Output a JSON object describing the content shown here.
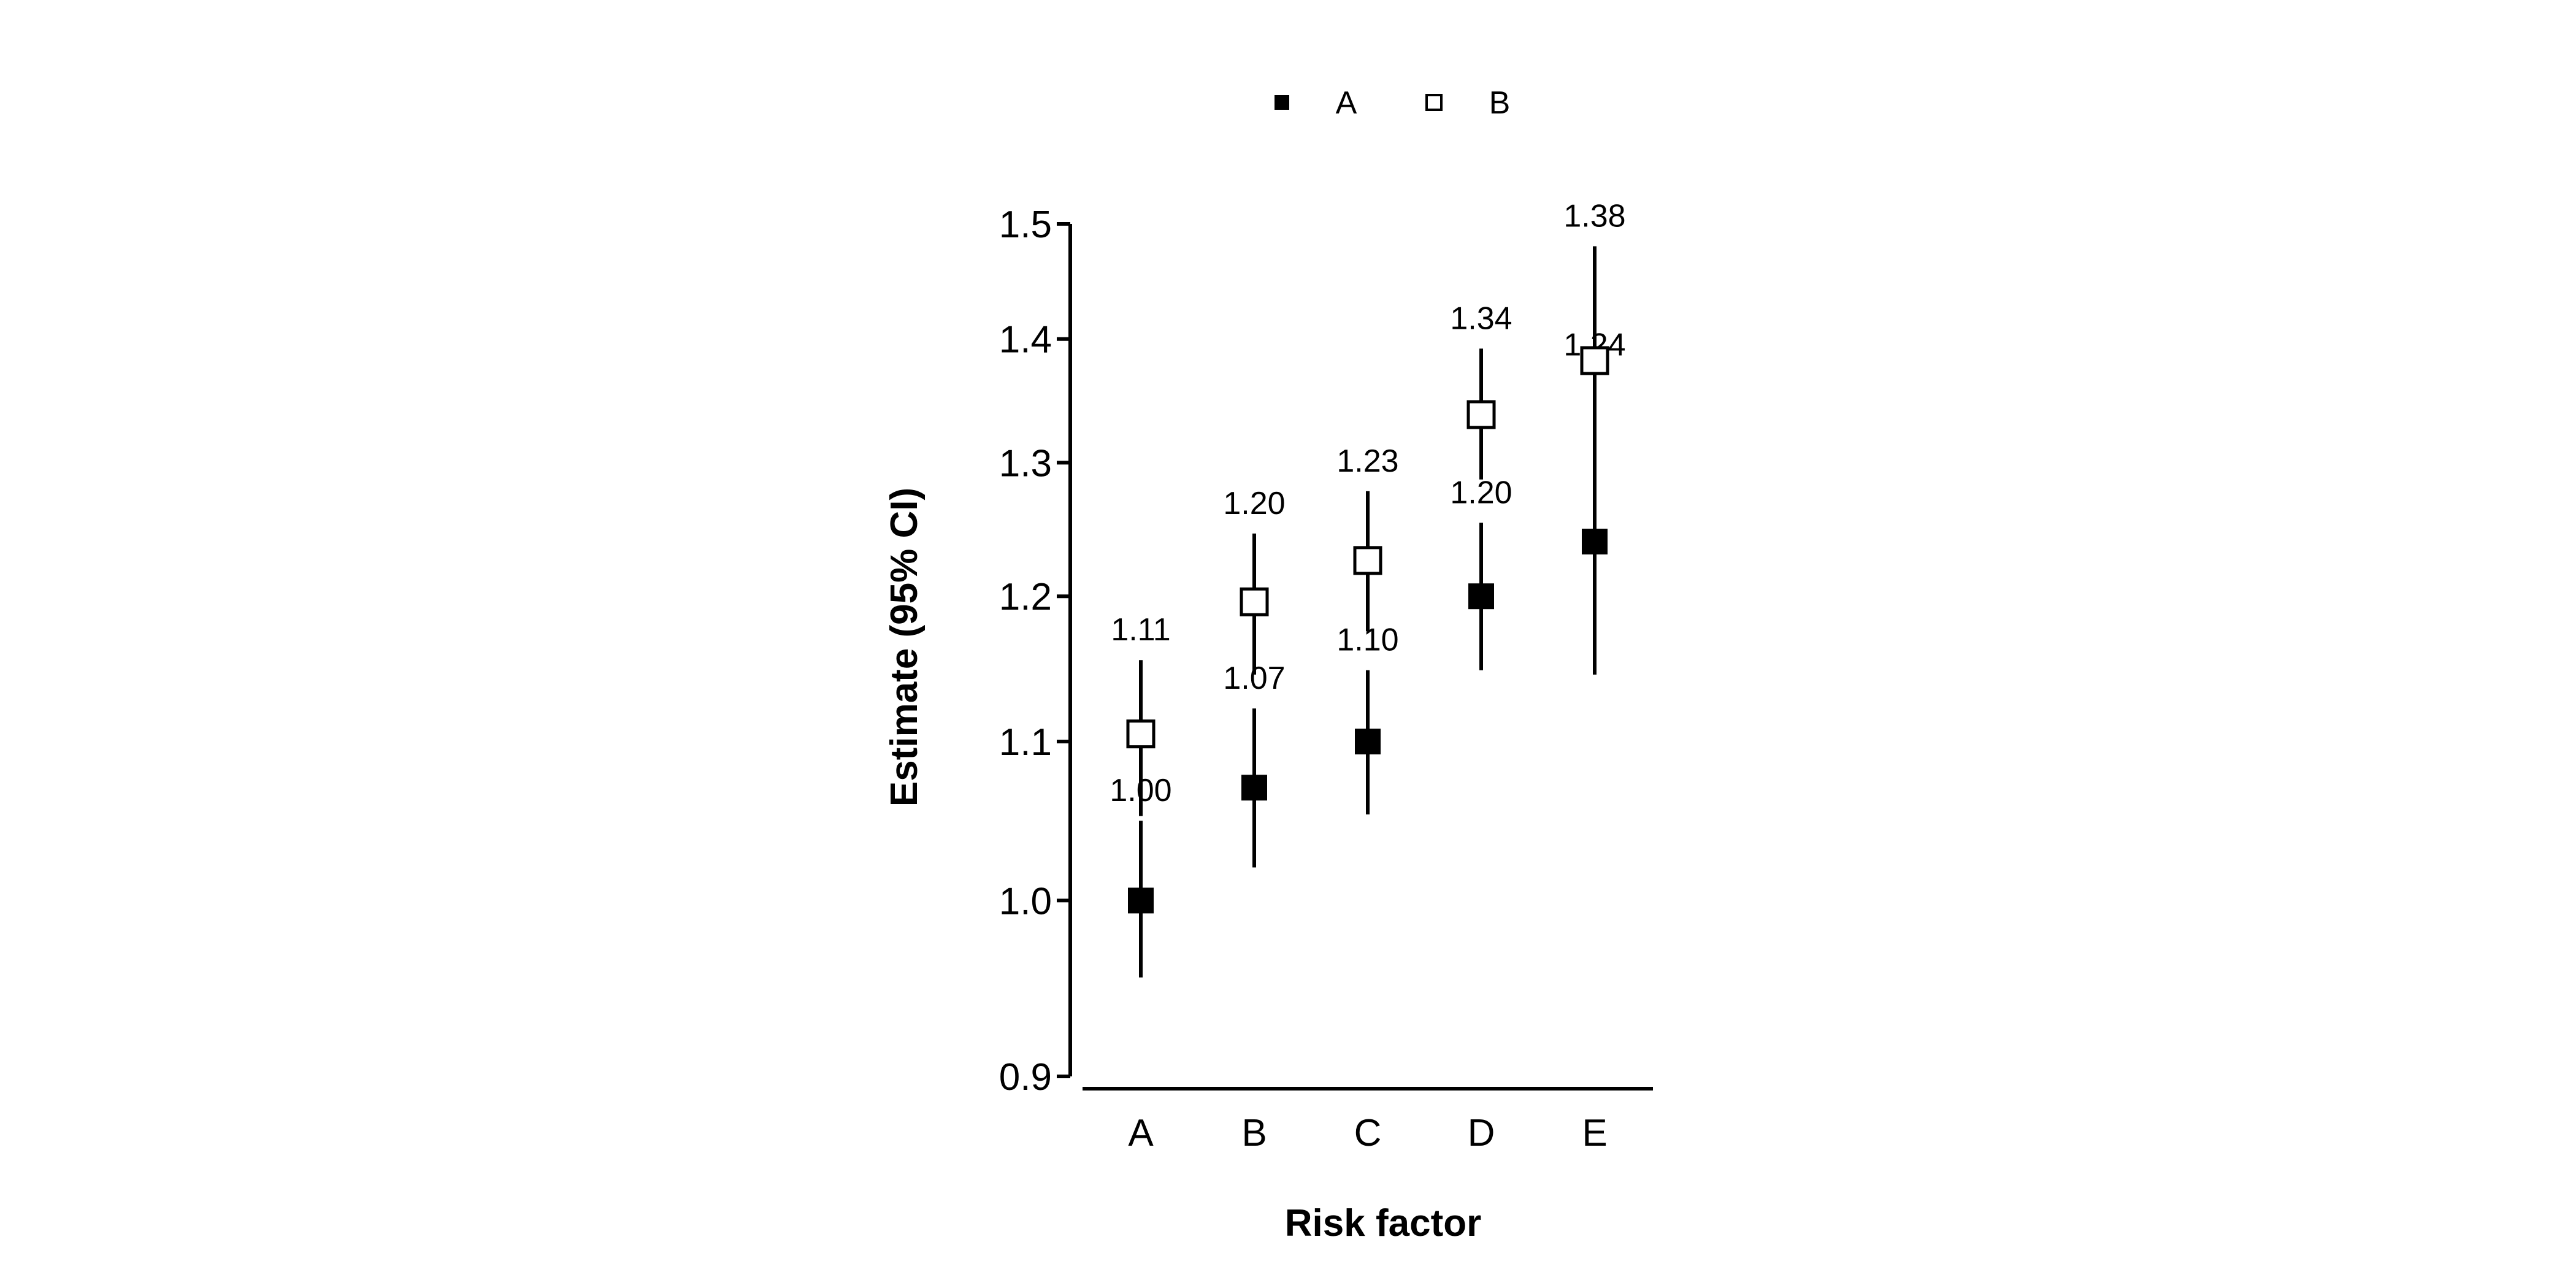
{
  "chart_data": {
    "type": "scatter",
    "subtype": "point-estimate-with-confidence-interval",
    "categories": [
      "A",
      "B",
      "C",
      "D",
      "E"
    ],
    "xlabel": "Risk factor",
    "ylabel": "Estimate (95% CI)",
    "yscale": "log",
    "ylim": [
      0.9,
      1.5
    ],
    "yticks": [
      0.9,
      1.0,
      1.1,
      1.2,
      1.3,
      1.4,
      1.5
    ],
    "ytick_labels": [
      "0.9",
      "1.0",
      "1.1",
      "1.2",
      "1.3",
      "1.4",
      "1.5"
    ],
    "grid": false,
    "legend": {
      "position": "top-center",
      "orientation": "horizontal"
    },
    "series": [
      {
        "name": "A",
        "marker": "filled-square",
        "color": "#000000",
        "values": [
          1.0,
          1.07,
          1.1,
          1.2,
          1.24
        ],
        "lower": [
          0.955,
          1.02,
          1.053,
          1.148,
          1.145
        ],
        "upper": [
          1.049,
          1.122,
          1.148,
          1.254,
          1.37
        ],
        "labels": [
          "1.00",
          "1.07",
          "1.10",
          "1.20",
          "1.24"
        ]
      },
      {
        "name": "B",
        "marker": "open-square",
        "color": "#000000",
        "values": [
          1.105,
          1.196,
          1.226,
          1.338,
          1.382
        ],
        "lower": [
          1.052,
          1.145,
          1.175,
          1.287,
          1.3
        ],
        "upper": [
          1.155,
          1.246,
          1.278,
          1.392,
          1.48
        ],
        "labels": [
          "1.11",
          "1.20",
          "1.23",
          "1.34",
          "1.38"
        ]
      }
    ]
  }
}
